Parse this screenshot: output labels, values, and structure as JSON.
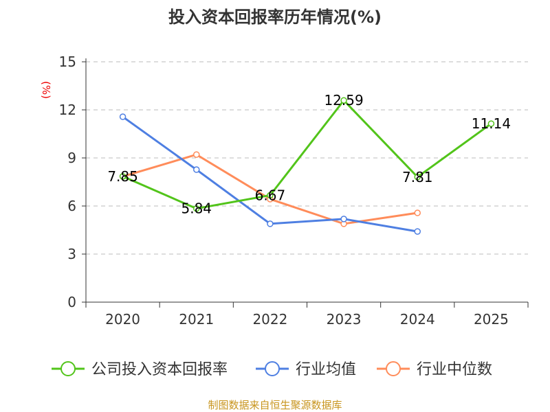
{
  "chart_data": {
    "type": "line",
    "title": "投入资本回报率历年情况(%)",
    "ylabel": "(%)",
    "xlabel": "",
    "categories": [
      "2020",
      "2021",
      "2022",
      "2023",
      "2024",
      "2025"
    ],
    "ylim": [
      0,
      15
    ],
    "yticks": [
      0,
      3,
      6,
      9,
      12,
      15
    ],
    "grid": true,
    "legend_position": "bottom",
    "series": [
      {
        "name": "公司投入资本回报率",
        "color": "#52c41a",
        "values": [
          7.85,
          5.84,
          6.67,
          12.59,
          7.81,
          11.14
        ],
        "labels": [
          "7.85",
          "5.84",
          "6.67",
          "12.59",
          "7.81",
          "11.14"
        ]
      },
      {
        "name": "行业均值",
        "color": "#4e7fe2",
        "values": [
          11.57,
          8.27,
          4.89,
          5.19,
          4.41,
          null
        ]
      },
      {
        "name": "行业中位数",
        "color": "#ff8c5a",
        "values": [
          7.84,
          9.21,
          6.43,
          4.89,
          5.57,
          null
        ]
      }
    ],
    "source": "制图数据来自恒生聚源数据库"
  }
}
